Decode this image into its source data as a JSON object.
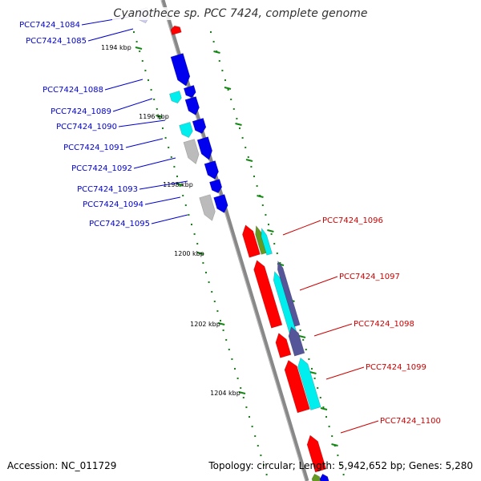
{
  "title": "Cyanothece sp. PCC 7424, complete genome",
  "accession": "Accession: NC_011729",
  "topology": "Topology: circular; Length: 5,942,652 bp; Genes: 5,280",
  "colors": {
    "forward_label": "#0000cc",
    "reverse_label": "#cc0000",
    "backbone": "#888888",
    "tick": "#118811",
    "gene_red": "#ff0000",
    "gene_blue": "#0000ee",
    "gene_cyan": "#00eeee",
    "gene_grey": "#bbbbbb",
    "gene_olive": "#669922",
    "gene_purple": "#55559a"
  },
  "position_labels": [
    "1194 kbp",
    "1196 kbp",
    "1198 kbp",
    "1200 kbp",
    "1202 kbp",
    "1204 kbp"
  ],
  "forward_genes": [
    "PCC7424_1084",
    "PCC7424_1085",
    "PCC7424_1088",
    "PCC7424_1089",
    "PCC7424_1090",
    "PCC7424_1091",
    "PCC7424_1092",
    "PCC7424_1093",
    "PCC7424_1094",
    "PCC7424_1095"
  ],
  "reverse_genes": [
    "PCC7424_1096",
    "PCC7424_1097",
    "PCC7424_1098",
    "PCC7424_1099",
    "PCC7424_1100"
  ]
}
